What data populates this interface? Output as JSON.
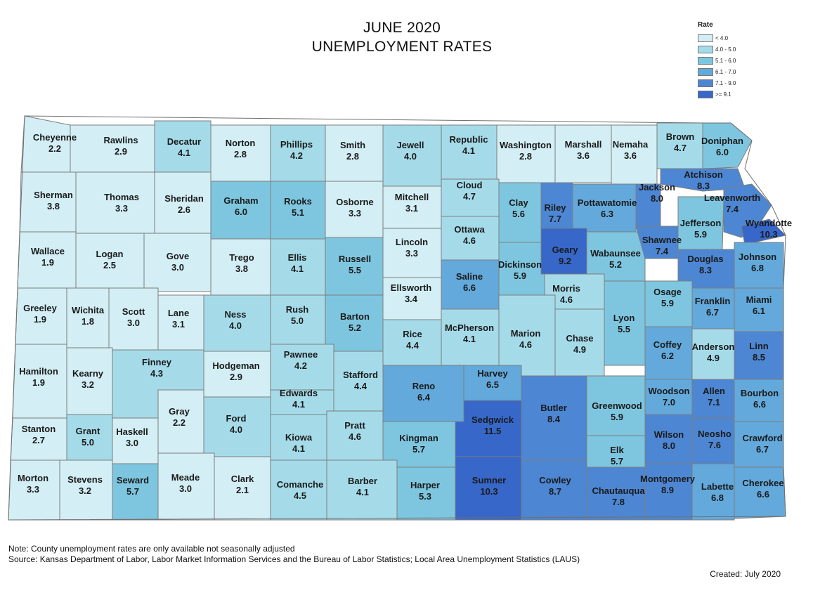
{
  "title": {
    "line1": "JUNE 2020",
    "line2": "UNEMPLOYMENT RATES"
  },
  "legend": {
    "title": "Rate",
    "items": [
      {
        "label": "< 4.0",
        "color": "#d3eef5"
      },
      {
        "label": "4.0 - 5.0",
        "color": "#a5dbe9"
      },
      {
        "label": "5.1 - 6.0",
        "color": "#7ec6df"
      },
      {
        "label": "6.1 - 7.0",
        "color": "#63a9db"
      },
      {
        "label": "7.1 - 9.0",
        "color": "#4d86d2"
      },
      {
        "label": ">= 9.1",
        "color": "#3767c9"
      }
    ]
  },
  "counties": [
    {
      "name": "Cheyenne",
      "rate": "2.2"
    },
    {
      "name": "Rawlins",
      "rate": "2.9"
    },
    {
      "name": "Decatur",
      "rate": "4.1"
    },
    {
      "name": "Norton",
      "rate": "2.8"
    },
    {
      "name": "Phillips",
      "rate": "4.2"
    },
    {
      "name": "Smith",
      "rate": "2.8"
    },
    {
      "name": "Jewell",
      "rate": "4.0"
    },
    {
      "name": "Republic",
      "rate": "4.1"
    },
    {
      "name": "Washington",
      "rate": "2.8"
    },
    {
      "name": "Marshall",
      "rate": "3.6"
    },
    {
      "name": "Nemaha",
      "rate": "3.6"
    },
    {
      "name": "Brown",
      "rate": "4.7"
    },
    {
      "name": "Doniphan",
      "rate": "6.0"
    },
    {
      "name": "Sherman",
      "rate": "3.8"
    },
    {
      "name": "Thomas",
      "rate": "3.3"
    },
    {
      "name": "Sheridan",
      "rate": "2.6"
    },
    {
      "name": "Graham",
      "rate": "6.0"
    },
    {
      "name": "Rooks",
      "rate": "5.1"
    },
    {
      "name": "Osborne",
      "rate": "3.3"
    },
    {
      "name": "Mitchell",
      "rate": "3.1"
    },
    {
      "name": "Cloud",
      "rate": "4.7"
    },
    {
      "name": "Clay",
      "rate": "5.6"
    },
    {
      "name": "Riley",
      "rate": "7.7"
    },
    {
      "name": "Pottawatomie",
      "rate": "6.3"
    },
    {
      "name": "Jackson",
      "rate": "8.0"
    },
    {
      "name": "Atchison",
      "rate": "8.3"
    },
    {
      "name": "Jefferson",
      "rate": "5.9"
    },
    {
      "name": "Leavenworth",
      "rate": "7.4"
    },
    {
      "name": "Wyandotte",
      "rate": "10.3"
    },
    {
      "name": "Wallace",
      "rate": "1.9"
    },
    {
      "name": "Logan",
      "rate": "2.5"
    },
    {
      "name": "Gove",
      "rate": "3.0"
    },
    {
      "name": "Trego",
      "rate": "3.8"
    },
    {
      "name": "Ellis",
      "rate": "4.1"
    },
    {
      "name": "Russell",
      "rate": "5.5"
    },
    {
      "name": "Lincoln",
      "rate": "3.3"
    },
    {
      "name": "Ottawa",
      "rate": "4.6"
    },
    {
      "name": "Dickinson",
      "rate": "5.9"
    },
    {
      "name": "Geary",
      "rate": "9.2"
    },
    {
      "name": "Wabaunsee",
      "rate": "5.2"
    },
    {
      "name": "Shawnee",
      "rate": "7.4"
    },
    {
      "name": "Douglas",
      "rate": "8.3"
    },
    {
      "name": "Johnson",
      "rate": "6.8"
    },
    {
      "name": "Greeley",
      "rate": "1.9"
    },
    {
      "name": "Wichita",
      "rate": "1.8"
    },
    {
      "name": "Scott",
      "rate": "3.0"
    },
    {
      "name": "Lane",
      "rate": "3.1"
    },
    {
      "name": "Ness",
      "rate": "4.0"
    },
    {
      "name": "Rush",
      "rate": "5.0"
    },
    {
      "name": "Barton",
      "rate": "5.2"
    },
    {
      "name": "Ellsworth",
      "rate": "3.4"
    },
    {
      "name": "Saline",
      "rate": "6.6"
    },
    {
      "name": "Morris",
      "rate": "4.6"
    },
    {
      "name": "Osage",
      "rate": "5.9"
    },
    {
      "name": "Franklin",
      "rate": "6.7"
    },
    {
      "name": "Miami",
      "rate": "6.1"
    },
    {
      "name": "Rice",
      "rate": "4.4"
    },
    {
      "name": "McPherson",
      "rate": "4.1"
    },
    {
      "name": "Marion",
      "rate": "4.6"
    },
    {
      "name": "Chase",
      "rate": "4.9"
    },
    {
      "name": "Lyon",
      "rate": "5.5"
    },
    {
      "name": "Coffey",
      "rate": "6.2"
    },
    {
      "name": "Anderson",
      "rate": "4.9"
    },
    {
      "name": "Linn",
      "rate": "8.5"
    },
    {
      "name": "Hamilton",
      "rate": "1.9"
    },
    {
      "name": "Kearny",
      "rate": "3.2"
    },
    {
      "name": "Finney",
      "rate": "4.3"
    },
    {
      "name": "Hodgeman",
      "rate": "2.9"
    },
    {
      "name": "Pawnee",
      "rate": "4.2"
    },
    {
      "name": "Stafford",
      "rate": "4.4"
    },
    {
      "name": "Reno",
      "rate": "6.4"
    },
    {
      "name": "Harvey",
      "rate": "6.5"
    },
    {
      "name": "Butler",
      "rate": "8.4"
    },
    {
      "name": "Greenwood",
      "rate": "5.9"
    },
    {
      "name": "Woodson",
      "rate": "7.0"
    },
    {
      "name": "Allen",
      "rate": "7.1"
    },
    {
      "name": "Bourbon",
      "rate": "6.6"
    },
    {
      "name": "Edwards",
      "rate": "4.1"
    },
    {
      "name": "Gray",
      "rate": "2.2"
    },
    {
      "name": "Stanton",
      "rate": "2.7"
    },
    {
      "name": "Grant",
      "rate": "5.0"
    },
    {
      "name": "Haskell",
      "rate": "3.0"
    },
    {
      "name": "Ford",
      "rate": "4.0"
    },
    {
      "name": "Kiowa",
      "rate": "4.1"
    },
    {
      "name": "Pratt",
      "rate": "4.6"
    },
    {
      "name": "Kingman",
      "rate": "5.7"
    },
    {
      "name": "Sedgwick",
      "rate": "11.5"
    },
    {
      "name": "Elk",
      "rate": "5.7"
    },
    {
      "name": "Wilson",
      "rate": "8.0"
    },
    {
      "name": "Neosho",
      "rate": "7.6"
    },
    {
      "name": "Crawford",
      "rate": "6.7"
    },
    {
      "name": "Morton",
      "rate": "3.3"
    },
    {
      "name": "Stevens",
      "rate": "3.2"
    },
    {
      "name": "Seward",
      "rate": "5.7"
    },
    {
      "name": "Meade",
      "rate": "3.0"
    },
    {
      "name": "Clark",
      "rate": "2.1"
    },
    {
      "name": "Comanche",
      "rate": "4.5"
    },
    {
      "name": "Barber",
      "rate": "4.1"
    },
    {
      "name": "Harper",
      "rate": "5.3"
    },
    {
      "name": "Sumner",
      "rate": "10.3"
    },
    {
      "name": "Cowley",
      "rate": "8.7"
    },
    {
      "name": "Chautauqua",
      "rate": "7.8"
    },
    {
      "name": "Montgomery",
      "rate": "8.9"
    },
    {
      "name": "Labette",
      "rate": "6.8"
    },
    {
      "name": "Cherokee",
      "rate": "6.6"
    }
  ],
  "footer": {
    "note": "Note: County unemployment rates are only available not seasonally adjusted",
    "source": "Source: Kansas Department of Labor, Labor Market Information Services and the Bureau of Labor Statistics; Local Area Unemployment Statistics (LAUS)",
    "created": "Created:  July 2020"
  }
}
